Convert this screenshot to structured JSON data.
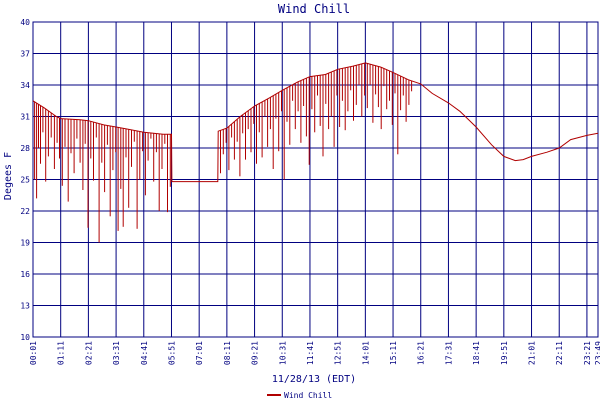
{
  "chart_data": {
    "type": "line",
    "title": "Wind Chill",
    "xlabel": "11/28/13 (EDT)",
    "ylabel": "Degees F",
    "ylim": [
      10,
      40
    ],
    "yticks": [
      10,
      13,
      16,
      19,
      22,
      25,
      28,
      31,
      34,
      37,
      40
    ],
    "xlim_hours": [
      0.0167,
      23.8167
    ],
    "x_tick_labels": [
      "00:01",
      "01:11",
      "02:21",
      "03:31",
      "04:41",
      "05:51",
      "07:01",
      "08:11",
      "09:21",
      "10:31",
      "11:41",
      "12:51",
      "14:01",
      "15:11",
      "16:21",
      "17:31",
      "18:41",
      "19:51",
      "21:01",
      "22:11",
      "23:21",
      "23:49"
    ],
    "grid": true,
    "legend_position": "bottom",
    "colors": {
      "axis": "#000080",
      "series": "#b00000",
      "background": "#ffffff"
    },
    "series": [
      {
        "name": "Wind Chill",
        "color": "#b00000",
        "baseline": [
          [
            "00:01",
            32.5
          ],
          [
            "00:30",
            31.8
          ],
          [
            "01:00",
            31.0
          ],
          [
            "01:11",
            30.8
          ],
          [
            "02:00",
            30.7
          ],
          [
            "02:21",
            30.6
          ],
          [
            "03:00",
            30.2
          ],
          [
            "03:31",
            30.0
          ],
          [
            "04:00",
            29.8
          ],
          [
            "04:41",
            29.5
          ],
          [
            "05:30",
            29.3
          ],
          [
            "05:51",
            29.3
          ],
          [
            "05:52",
            24.8
          ],
          [
            "07:01",
            24.8
          ],
          [
            "07:48",
            24.8
          ],
          [
            "07:49",
            29.6
          ],
          [
            "08:11",
            29.9
          ],
          [
            "08:45",
            31.0
          ],
          [
            "09:21",
            32.0
          ],
          [
            "10:00",
            32.8
          ],
          [
            "10:31",
            33.5
          ],
          [
            "11:10",
            34.3
          ],
          [
            "11:41",
            34.8
          ],
          [
            "12:20",
            35.0
          ],
          [
            "12:51",
            35.5
          ],
          [
            "13:30",
            35.8
          ],
          [
            "14:01",
            36.1
          ],
          [
            "14:40",
            35.7
          ],
          [
            "15:11",
            35.2
          ],
          [
            "15:50",
            34.5
          ],
          [
            "16:21",
            34.1
          ],
          [
            "16:50",
            33.2
          ],
          [
            "17:31",
            32.3
          ],
          [
            "18:00",
            31.5
          ],
          [
            "18:41",
            30.0
          ],
          [
            "19:20",
            28.3
          ],
          [
            "19:51",
            27.2
          ],
          [
            "20:20",
            26.8
          ],
          [
            "20:40",
            26.9
          ],
          [
            "21:01",
            27.2
          ],
          [
            "21:40",
            27.6
          ],
          [
            "22:11",
            28.0
          ],
          [
            "22:40",
            28.8
          ],
          [
            "23:21",
            29.2
          ],
          [
            "23:49",
            29.4
          ]
        ],
        "gust_dips": [
          [
            "00:05",
            25.0
          ],
          [
            "00:10",
            23.2
          ],
          [
            "00:15",
            28.0
          ],
          [
            "00:20",
            26.5
          ],
          [
            "00:26",
            29.5
          ],
          [
            "00:33",
            24.8
          ],
          [
            "00:40",
            27.2
          ],
          [
            "00:47",
            29.0
          ],
          [
            "00:55",
            26.0
          ],
          [
            "01:02",
            28.5
          ],
          [
            "01:08",
            27.0
          ],
          [
            "01:15",
            24.4
          ],
          [
            "01:22",
            28.1
          ],
          [
            "01:30",
            22.9
          ],
          [
            "01:37",
            27.5
          ],
          [
            "01:45",
            25.6
          ],
          [
            "01:52",
            28.9
          ],
          [
            "02:00",
            26.6
          ],
          [
            "02:07",
            24.0
          ],
          [
            "02:13",
            28.4
          ],
          [
            "02:20",
            20.4
          ],
          [
            "02:27",
            27.0
          ],
          [
            "02:34",
            24.9
          ],
          [
            "02:41",
            29.0
          ],
          [
            "02:48",
            19.0
          ],
          [
            "02:55",
            26.6
          ],
          [
            "03:02",
            23.8
          ],
          [
            "03:09",
            28.3
          ],
          [
            "03:16",
            21.5
          ],
          [
            "03:23",
            25.9
          ],
          [
            "03:30",
            27.6
          ],
          [
            "03:36",
            20.1
          ],
          [
            "03:43",
            24.1
          ],
          [
            "03:49",
            20.5
          ],
          [
            "03:56",
            27.1
          ],
          [
            "04:03",
            22.3
          ],
          [
            "04:10",
            26.2
          ],
          [
            "04:17",
            28.6
          ],
          [
            "04:24",
            20.3
          ],
          [
            "04:31",
            25.0
          ],
          [
            "04:38",
            27.7
          ],
          [
            "04:45",
            23.5
          ],
          [
            "04:52",
            26.8
          ],
          [
            "04:59",
            28.9
          ],
          [
            "05:06",
            24.8
          ],
          [
            "05:13",
            27.6
          ],
          [
            "05:20",
            22.0
          ],
          [
            "05:27",
            26.0
          ],
          [
            "05:34",
            28.4
          ],
          [
            "05:41",
            21.9
          ],
          [
            "05:48",
            24.3
          ],
          [
            "07:55",
            25.6
          ],
          [
            "08:02",
            27.4
          ],
          [
            "08:09",
            28.5
          ],
          [
            "08:16",
            25.9
          ],
          [
            "08:23",
            29.0
          ],
          [
            "08:30",
            26.9
          ],
          [
            "08:37",
            28.6
          ],
          [
            "08:44",
            25.3
          ],
          [
            "08:51",
            29.4
          ],
          [
            "08:58",
            26.9
          ],
          [
            "09:05",
            29.8
          ],
          [
            "09:12",
            27.6
          ],
          [
            "09:19",
            30.3
          ],
          [
            "09:26",
            26.5
          ],
          [
            "09:33",
            29.5
          ],
          [
            "09:40",
            27.1
          ],
          [
            "09:47",
            31.0
          ],
          [
            "09:54",
            28.1
          ],
          [
            "10:01",
            29.8
          ],
          [
            "10:08",
            26.0
          ],
          [
            "10:15",
            30.8
          ],
          [
            "10:22",
            27.7
          ],
          [
            "10:29",
            31.5
          ],
          [
            "10:36",
            25.0
          ],
          [
            "10:43",
            30.5
          ],
          [
            "10:50",
            28.3
          ],
          [
            "10:57",
            32.5
          ],
          [
            "11:04",
            29.8
          ],
          [
            "11:11",
            31.5
          ],
          [
            "11:18",
            28.5
          ],
          [
            "11:25",
            32.0
          ],
          [
            "11:32",
            29.1
          ],
          [
            "11:39",
            26.4
          ],
          [
            "11:46",
            31.7
          ],
          [
            "11:53",
            29.5
          ],
          [
            "12:00",
            33.0
          ],
          [
            "12:07",
            30.1
          ],
          [
            "12:14",
            27.2
          ],
          [
            "12:21",
            32.2
          ],
          [
            "12:28",
            29.8
          ],
          [
            "12:35",
            31.0
          ],
          [
            "12:42",
            28.1
          ],
          [
            "12:49",
            33.0
          ],
          [
            "12:56",
            30.0
          ],
          [
            "13:03",
            32.5
          ],
          [
            "13:10",
            29.7
          ],
          [
            "13:17",
            31.5
          ],
          [
            "13:24",
            33.5
          ],
          [
            "13:31",
            30.6
          ],
          [
            "13:38",
            32.1
          ],
          [
            "13:45",
            34.0
          ],
          [
            "13:52",
            31.0
          ],
          [
            "13:59",
            33.0
          ],
          [
            "14:06",
            31.8
          ],
          [
            "14:13",
            34.0
          ],
          [
            "14:20",
            30.4
          ],
          [
            "14:27",
            33.1
          ],
          [
            "14:34",
            31.9
          ],
          [
            "14:41",
            29.8
          ],
          [
            "14:48",
            33.9
          ],
          [
            "14:55",
            31.7
          ],
          [
            "15:02",
            32.5
          ],
          [
            "15:09",
            30.2
          ],
          [
            "15:16",
            33.2
          ],
          [
            "15:23",
            27.4
          ],
          [
            "15:30",
            31.6
          ],
          [
            "15:37",
            33.0
          ],
          [
            "15:44",
            30.5
          ],
          [
            "15:51",
            32.1
          ],
          [
            "15:58",
            33.4
          ]
        ]
      }
    ]
  }
}
